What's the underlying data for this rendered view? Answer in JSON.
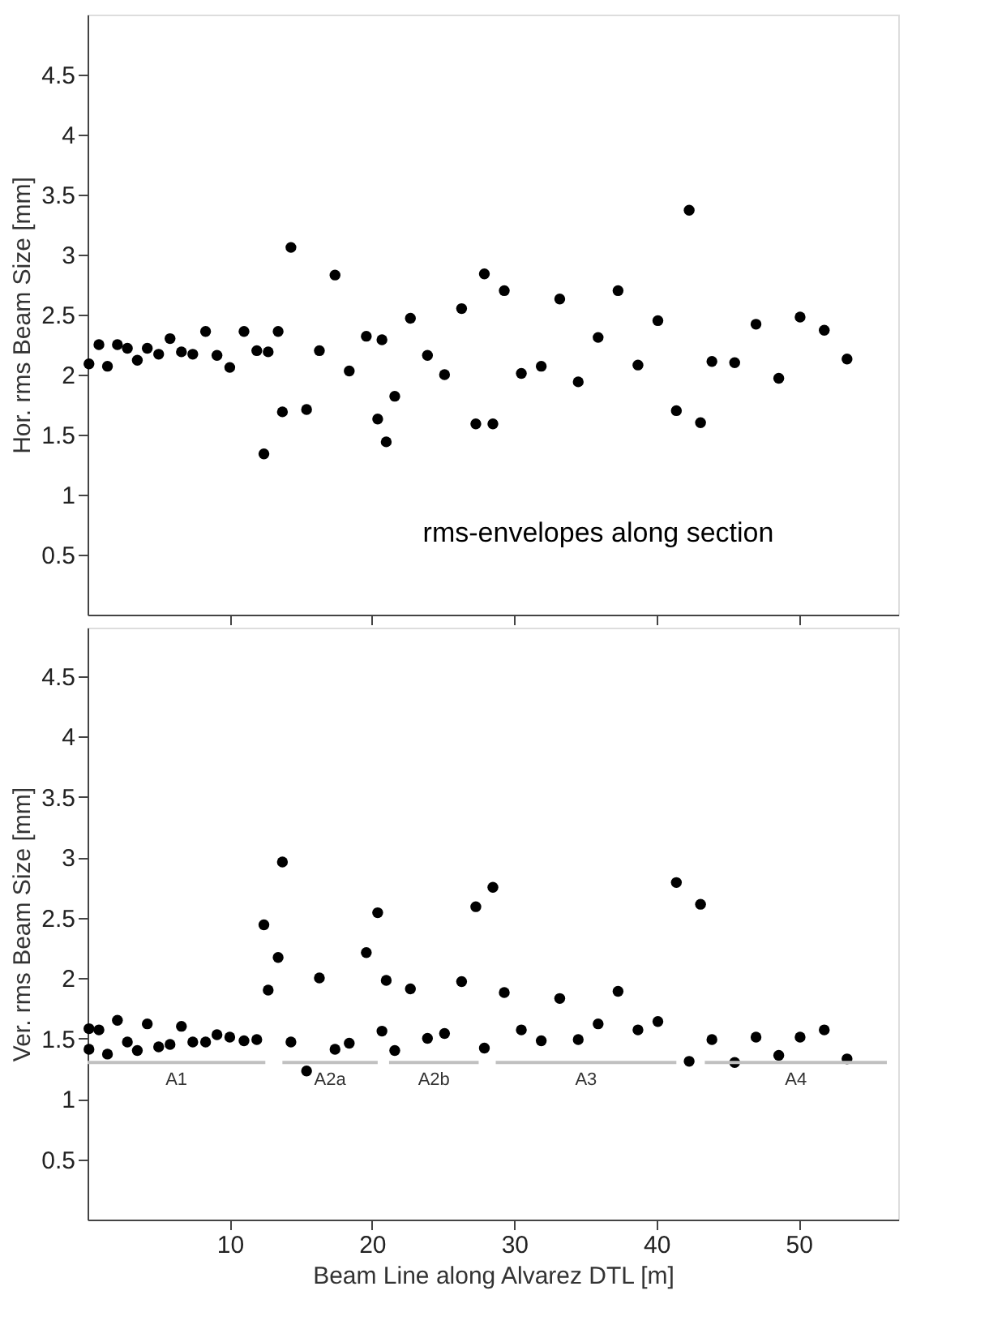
{
  "chart_data": [
    {
      "type": "scatter",
      "ylabel": "Hor. rms Beam Size [mm]",
      "xlim": [
        0,
        57
      ],
      "ylim": [
        0,
        5
      ],
      "xticks": [
        10,
        20,
        30,
        40,
        50
      ],
      "yticks": [
        0.5,
        1,
        1.5,
        2,
        2.5,
        3,
        3.5,
        4,
        4.5
      ],
      "tick_labels": "y",
      "marker": "circle",
      "grid": false,
      "annotations": [
        "rms-envelopes along section"
      ],
      "series": [
        {
          "color": "#000000",
          "x": [
            0.1,
            0.8,
            1.4,
            2.1,
            2.8,
            3.5,
            4.2,
            5.0,
            5.8,
            6.6,
            7.4,
            8.3,
            9.1,
            10.0,
            11.0,
            11.9,
            12.4,
            12.7,
            13.4,
            13.7,
            14.3,
            15.4,
            16.3,
            17.4,
            18.4,
            19.6,
            20.4,
            20.7,
            21.0,
            21.6,
            22.7,
            23.9,
            25.1,
            26.3,
            27.3,
            27.9,
            28.5,
            29.3,
            30.5,
            31.9,
            33.2,
            34.5,
            35.9,
            37.3,
            38.7,
            40.1,
            41.4,
            42.3,
            43.1,
            43.9,
            45.5,
            47.0,
            48.6,
            50.1,
            51.8,
            53.4
          ],
          "values": [
            2.09,
            2.25,
            2.07,
            2.25,
            2.22,
            2.12,
            2.22,
            2.17,
            2.3,
            2.19,
            2.17,
            2.36,
            2.16,
            2.06,
            2.36,
            2.2,
            1.34,
            2.19,
            2.36,
            1.69,
            3.06,
            1.71,
            2.2,
            2.83,
            2.03,
            2.32,
            1.63,
            2.29,
            1.44,
            1.82,
            2.47,
            2.16,
            2.0,
            2.55,
            1.59,
            2.84,
            1.59,
            2.7,
            2.01,
            2.07,
            2.63,
            1.94,
            2.31,
            2.7,
            2.08,
            2.45,
            1.7,
            3.37,
            1.6,
            2.11,
            2.1,
            2.42,
            1.97,
            2.48,
            2.37,
            2.13
          ]
        }
      ]
    },
    {
      "type": "scatter",
      "xlabel": "Beam Line along Alvarez DTL  [m]",
      "ylabel": "Ver. rms Beam Size [mm]",
      "xlim": [
        0,
        57
      ],
      "ylim": [
        0,
        4.9
      ],
      "xticks": [
        10,
        20,
        30,
        40,
        50
      ],
      "yticks": [
        0.5,
        1,
        1.5,
        2,
        2.5,
        3,
        3.5,
        4,
        4.5
      ],
      "marker": "circle",
      "grid": false,
      "series": [
        {
          "color": "#000000",
          "x": [
            0.1,
            0.1,
            0.8,
            1.4,
            2.1,
            2.8,
            3.5,
            4.2,
            5.0,
            5.8,
            6.6,
            7.4,
            8.3,
            9.1,
            10.0,
            11.0,
            11.9,
            12.4,
            12.7,
            13.4,
            13.7,
            14.3,
            15.4,
            16.3,
            17.4,
            18.4,
            19.6,
            20.4,
            20.7,
            21.0,
            21.6,
            22.7,
            23.9,
            25.1,
            26.3,
            27.3,
            27.9,
            28.5,
            29.3,
            30.5,
            31.9,
            33.2,
            34.5,
            35.9,
            37.3,
            38.7,
            40.1,
            41.4,
            42.3,
            43.1,
            43.9,
            45.5,
            47.0,
            48.6,
            50.1,
            51.8,
            53.4
          ],
          "values": [
            1.41,
            1.58,
            1.57,
            1.37,
            1.65,
            1.47,
            1.4,
            1.62,
            1.43,
            1.45,
            1.6,
            1.47,
            1.47,
            1.53,
            1.51,
            1.48,
            1.49,
            2.44,
            1.9,
            2.17,
            2.96,
            1.47,
            1.23,
            2.0,
            1.41,
            1.46,
            2.21,
            2.54,
            1.56,
            1.98,
            1.4,
            1.91,
            1.5,
            1.54,
            1.97,
            2.59,
            1.42,
            2.75,
            1.88,
            1.57,
            1.48,
            1.83,
            1.49,
            1.62,
            1.89,
            1.57,
            1.64,
            2.79,
            1.31,
            2.61,
            1.49,
            1.3,
            1.51,
            1.36,
            1.51,
            1.57,
            1.33
          ]
        },
        {
          "type": "line",
          "name": "A1",
          "marker": "none",
          "color": "#c0c0c0",
          "x": [
            0,
            12.5
          ],
          "values": [
            1.3,
            1.3
          ]
        },
        {
          "type": "line",
          "name": "A2a",
          "marker": "none",
          "color": "#c0c0c0",
          "x": [
            13.7,
            20.4
          ],
          "values": [
            1.3,
            1.3
          ]
        },
        {
          "type": "line",
          "name": "A2b",
          "marker": "none",
          "color": "#c0c0c0",
          "x": [
            21.2,
            27.5
          ],
          "values": [
            1.3,
            1.3
          ]
        },
        {
          "type": "line",
          "name": "A3",
          "marker": "none",
          "color": "#c0c0c0",
          "x": [
            28.7,
            41.4
          ],
          "values": [
            1.3,
            1.3
          ]
        },
        {
          "type": "line",
          "name": "A4",
          "marker": "none",
          "color": "#c0c0c0",
          "x": [
            43.4,
            56.2
          ],
          "values": [
            1.3,
            1.3
          ]
        }
      ]
    }
  ]
}
